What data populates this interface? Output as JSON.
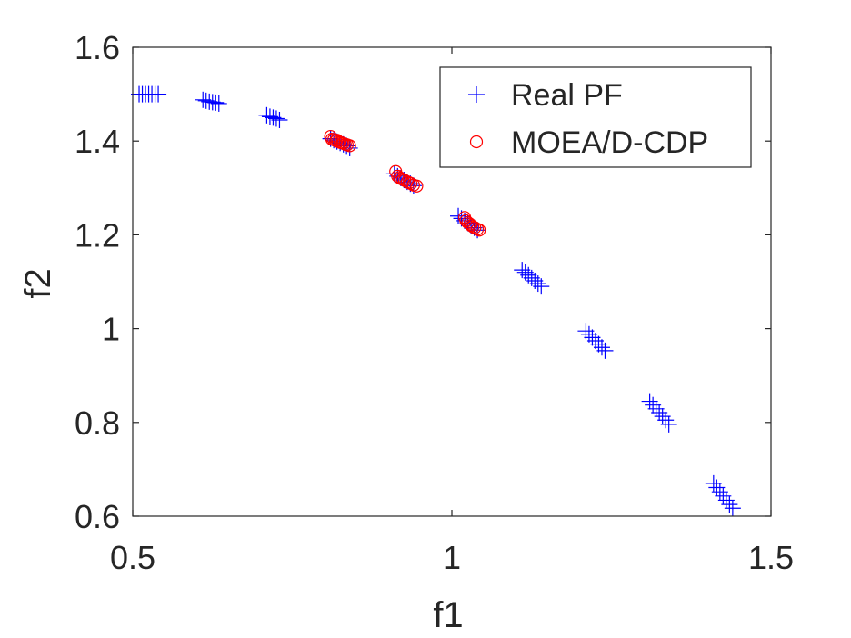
{
  "chart_data": {
    "type": "scatter",
    "title": "",
    "xlabel": "f1",
    "ylabel": "f2",
    "xlim": [
      0.5,
      1.5
    ],
    "ylim": [
      0.6,
      1.6
    ],
    "xticks": [
      0.5,
      1,
      1.5
    ],
    "xtick_labels": [
      "0.5",
      "1",
      "1.5"
    ],
    "yticks": [
      0.6,
      0.8,
      1,
      1.2,
      1.4,
      1.6
    ],
    "ytick_labels": [
      "0.6",
      "0.8",
      "1",
      "1.2",
      "1.4",
      "1.6"
    ],
    "grid": false,
    "legend_position": "top-right",
    "series": [
      {
        "name": "Real PF",
        "marker": "plus",
        "color": "#0000ff",
        "points": [
          [
            0.51,
            1.5
          ],
          [
            0.515,
            1.5
          ],
          [
            0.52,
            1.5
          ],
          [
            0.525,
            1.5
          ],
          [
            0.53,
            1.5
          ],
          [
            0.535,
            1.5
          ],
          [
            0.54,
            1.5
          ],
          [
            0.61,
            1.488
          ],
          [
            0.615,
            1.486
          ],
          [
            0.62,
            1.484
          ],
          [
            0.625,
            1.483
          ],
          [
            0.63,
            1.482
          ],
          [
            0.635,
            1.48
          ],
          [
            0.71,
            1.455
          ],
          [
            0.715,
            1.452
          ],
          [
            0.72,
            1.45
          ],
          [
            0.725,
            1.448
          ],
          [
            0.73,
            1.445
          ],
          [
            0.81,
            1.405
          ],
          [
            0.815,
            1.402
          ],
          [
            0.82,
            1.399
          ],
          [
            0.825,
            1.396
          ],
          [
            0.83,
            1.393
          ],
          [
            0.835,
            1.39
          ],
          [
            0.84,
            1.385
          ],
          [
            0.91,
            1.33
          ],
          [
            0.915,
            1.325
          ],
          [
            0.92,
            1.321
          ],
          [
            0.925,
            1.317
          ],
          [
            0.93,
            1.313
          ],
          [
            0.935,
            1.309
          ],
          [
            0.94,
            1.305
          ],
          [
            1.01,
            1.24
          ],
          [
            1.015,
            1.235
          ],
          [
            1.02,
            1.23
          ],
          [
            1.025,
            1.225
          ],
          [
            1.03,
            1.22
          ],
          [
            1.035,
            1.215
          ],
          [
            1.04,
            1.21
          ],
          [
            1.11,
            1.125
          ],
          [
            1.115,
            1.12
          ],
          [
            1.12,
            1.114
          ],
          [
            1.125,
            1.108
          ],
          [
            1.13,
            1.102
          ],
          [
            1.135,
            1.096
          ],
          [
            1.14,
            1.09
          ],
          [
            1.21,
            0.995
          ],
          [
            1.215,
            0.988
          ],
          [
            1.22,
            0.981
          ],
          [
            1.225,
            0.974
          ],
          [
            1.23,
            0.967
          ],
          [
            1.235,
            0.96
          ],
          [
            1.24,
            0.953
          ],
          [
            1.31,
            0.845
          ],
          [
            1.315,
            0.837
          ],
          [
            1.32,
            0.829
          ],
          [
            1.325,
            0.821
          ],
          [
            1.33,
            0.813
          ],
          [
            1.335,
            0.805
          ],
          [
            1.34,
            0.796
          ],
          [
            1.41,
            0.67
          ],
          [
            1.415,
            0.661
          ],
          [
            1.42,
            0.652
          ],
          [
            1.425,
            0.643
          ],
          [
            1.43,
            0.634
          ],
          [
            1.435,
            0.625
          ],
          [
            1.44,
            0.617
          ]
        ]
      },
      {
        "name": "MOEA/D-CDP",
        "marker": "circle",
        "color": "#ff0000",
        "points": [
          [
            0.81,
            1.41
          ],
          [
            0.812,
            1.404
          ],
          [
            0.815,
            1.403
          ],
          [
            0.818,
            1.401
          ],
          [
            0.82,
            1.402
          ],
          [
            0.822,
            1.399
          ],
          [
            0.825,
            1.397
          ],
          [
            0.828,
            1.396
          ],
          [
            0.83,
            1.395
          ],
          [
            0.833,
            1.393
          ],
          [
            0.836,
            1.392
          ],
          [
            0.84,
            1.39
          ],
          [
            0.912,
            1.335
          ],
          [
            0.915,
            1.325
          ],
          [
            0.918,
            1.322
          ],
          [
            0.92,
            1.32
          ],
          [
            0.923,
            1.318
          ],
          [
            0.926,
            1.316
          ],
          [
            0.93,
            1.313
          ],
          [
            0.933,
            1.311
          ],
          [
            0.936,
            1.309
          ],
          [
            0.94,
            1.306
          ],
          [
            0.945,
            1.304
          ],
          [
            1.02,
            1.237
          ],
          [
            1.022,
            1.23
          ],
          [
            1.025,
            1.226
          ],
          [
            1.028,
            1.223
          ],
          [
            1.03,
            1.22
          ],
          [
            1.033,
            1.217
          ],
          [
            1.036,
            1.215
          ],
          [
            1.04,
            1.212
          ],
          [
            1.043,
            1.21
          ]
        ]
      }
    ]
  }
}
